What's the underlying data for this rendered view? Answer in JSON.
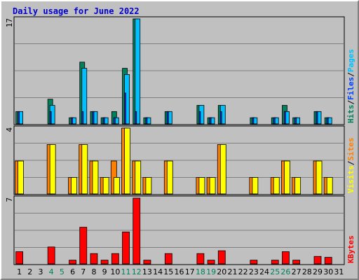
{
  "title": "Daily usage for June 2022",
  "colors": {
    "hits": "#00805c",
    "files": "#0040ff",
    "pages": "#00c0ff",
    "visits": "#ffff00",
    "sites": "#ff8000",
    "kbytes": "#ff0000",
    "weekend_day": "#00805c",
    "weekday_day": "#000000"
  },
  "chart_data": [
    {
      "type": "bar",
      "panel": "top",
      "max_label": "17",
      "ylim": [
        0,
        17
      ],
      "legend": [
        {
          "text": "Hits",
          "color": "#00805c"
        },
        {
          "text": "/",
          "color": "#000000"
        },
        {
          "text": "Files",
          "color": "#0040ff"
        },
        {
          "text": "/",
          "color": "#000000"
        },
        {
          "text": "Pages",
          "color": "#00c0ff"
        }
      ],
      "categories": [
        "1",
        "2",
        "3",
        "4",
        "5",
        "6",
        "7",
        "8",
        "9",
        "10",
        "11",
        "12",
        "13",
        "14",
        "15",
        "16",
        "17",
        "18",
        "19",
        "20",
        "21",
        "22",
        "23",
        "24",
        "25",
        "26",
        "27",
        "28",
        "29",
        "30",
        "31"
      ],
      "series": [
        {
          "name": "Hits",
          "values": [
            2,
            0,
            0,
            4,
            0,
            1,
            10,
            2,
            1,
            2,
            9,
            17,
            1,
            0,
            2,
            0,
            0,
            3,
            1,
            3,
            0,
            0,
            1,
            0,
            1,
            3,
            1,
            0,
            2,
            1,
            0
          ]
        },
        {
          "name": "Files",
          "values": [
            2,
            0,
            0,
            2,
            0,
            1,
            2,
            2,
            1,
            1,
            5,
            2,
            1,
            0,
            2,
            0,
            0,
            2,
            1,
            2,
            0,
            0,
            1,
            0,
            1,
            2,
            1,
            0,
            2,
            1,
            0
          ]
        },
        {
          "name": "Pages",
          "values": [
            2,
            0,
            0,
            3,
            0,
            1,
            9,
            2,
            1,
            1,
            8,
            17,
            1,
            0,
            2,
            0,
            0,
            3,
            1,
            3,
            0,
            0,
            1,
            0,
            1,
            2,
            1,
            0,
            2,
            1,
            0
          ]
        }
      ]
    },
    {
      "type": "bar",
      "panel": "middle",
      "max_label": "4",
      "ylim": [
        0,
        4
      ],
      "legend": [
        {
          "text": "Visits",
          "color": "#ffff00"
        },
        {
          "text": "/",
          "color": "#000000"
        },
        {
          "text": "Sites",
          "color": "#ff8000"
        }
      ],
      "categories": [
        "1",
        "2",
        "3",
        "4",
        "5",
        "6",
        "7",
        "8",
        "9",
        "10",
        "11",
        "12",
        "13",
        "14",
        "15",
        "16",
        "17",
        "18",
        "19",
        "20",
        "21",
        "22",
        "23",
        "24",
        "25",
        "26",
        "27",
        "28",
        "29",
        "30",
        "31"
      ],
      "series": [
        {
          "name": "Visits",
          "values": [
            2,
            0,
            0,
            3,
            0,
            1,
            3,
            2,
            1,
            1,
            4,
            2,
            1,
            0,
            2,
            0,
            0,
            1,
            1,
            3,
            0,
            0,
            1,
            0,
            1,
            2,
            1,
            0,
            2,
            1,
            0
          ]
        },
        {
          "name": "Sites",
          "values": [
            2,
            0,
            0,
            3,
            0,
            1,
            3,
            2,
            1,
            2,
            4,
            2,
            1,
            0,
            2,
            0,
            0,
            1,
            1,
            3,
            0,
            0,
            1,
            0,
            1,
            2,
            1,
            0,
            2,
            1,
            0
          ]
        }
      ]
    },
    {
      "type": "bar",
      "panel": "bottom",
      "max_label": "7",
      "ylim": [
        0,
        7
      ],
      "legend": [
        {
          "text": "KBytes",
          "color": "#ff0000"
        }
      ],
      "categories": [
        "1",
        "2",
        "3",
        "4",
        "5",
        "6",
        "7",
        "8",
        "9",
        "10",
        "11",
        "12",
        "13",
        "14",
        "15",
        "16",
        "17",
        "18",
        "19",
        "20",
        "21",
        "22",
        "23",
        "24",
        "25",
        "26",
        "27",
        "28",
        "29",
        "30",
        "31"
      ],
      "series": [
        {
          "name": "KBytes",
          "values": [
            1.3,
            0,
            0,
            1.8,
            0,
            0.4,
            3.9,
            1.1,
            0.4,
            1.1,
            3.4,
            7,
            0.4,
            0,
            1.1,
            0,
            0,
            1.1,
            0.4,
            1.4,
            0,
            0,
            0.4,
            0,
            0.4,
            1.3,
            0.4,
            0,
            0.8,
            0.7,
            0
          ]
        }
      ]
    }
  ],
  "x_axis": {
    "day_labels": [
      "1",
      "2",
      "3",
      "4",
      "5",
      "6",
      "7",
      "8",
      "9",
      "10",
      "11",
      "12",
      "13",
      "14",
      "15",
      "16",
      "17",
      "18",
      "19",
      "20",
      "21",
      "22",
      "23",
      "24",
      "25",
      "26",
      "27",
      "28",
      "29",
      "30",
      "31"
    ],
    "weekend_days": [
      "4",
      "5",
      "11",
      "12",
      "18",
      "19",
      "25",
      "26"
    ]
  }
}
